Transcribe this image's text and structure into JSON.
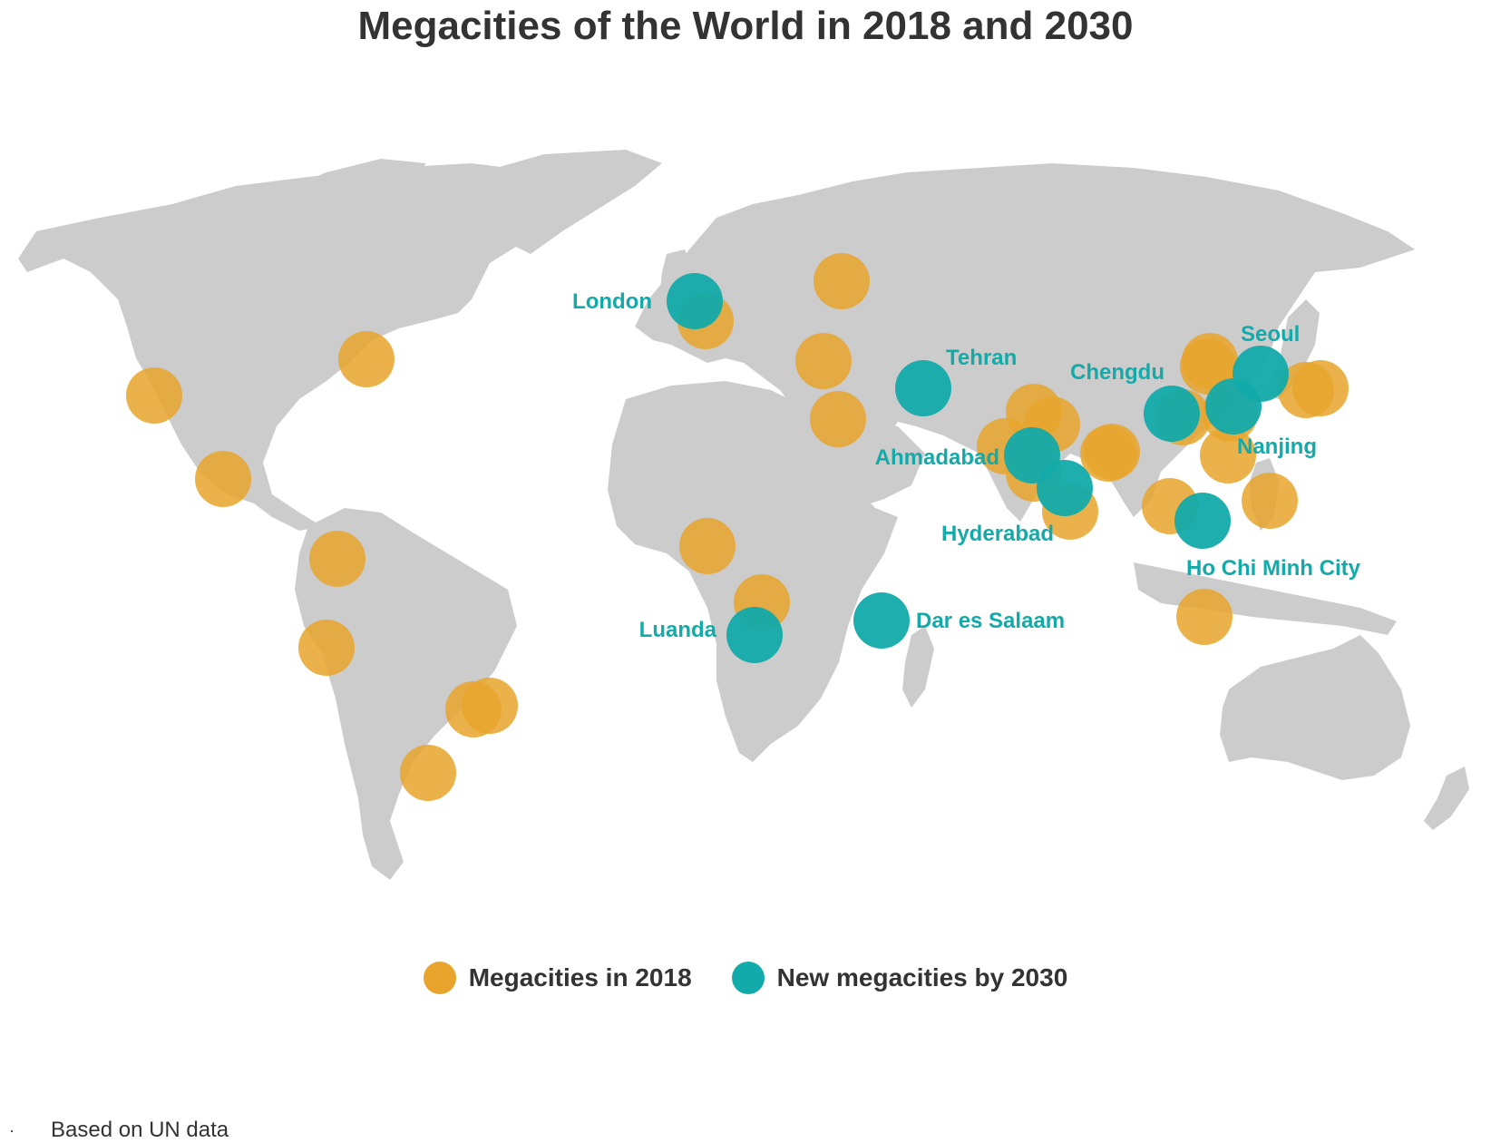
{
  "title": "Megacities of the World in 2018 and 2030",
  "colors": {
    "land": "#cccccc",
    "megacity_2018": "#e8a42c",
    "new_megacity_2030": "#13aaaa",
    "text": "#333333"
  },
  "legend": {
    "items": [
      {
        "label": "Megacities in 2018",
        "color": "#e8a42c",
        "icon": "orange-circle"
      },
      {
        "label": "New megacities by 2030",
        "color": "#13aaaa",
        "icon": "teal-circle"
      }
    ]
  },
  "labels": {
    "london": "London",
    "tehran": "Tehran",
    "chengdu": "Chengdu",
    "seoul": "Seoul",
    "nanjing": "Nanjing",
    "ahmadabad": "Ahmadabad",
    "hyderabad": "Hyderabad",
    "ho_chi_minh_city": "Ho Chi Minh City",
    "luanda": "Luanda",
    "dar_es_salaam": "Dar es Salaam"
  },
  "footnote": {
    "bullet": "·",
    "text": "Based on UN data"
  }
}
